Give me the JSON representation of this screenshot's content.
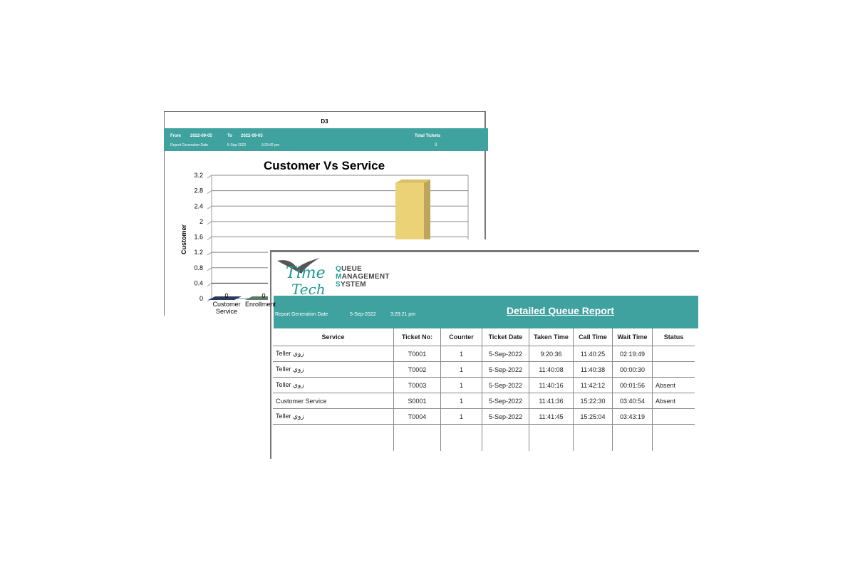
{
  "summary_report": {
    "title": "D3",
    "from_label": "From",
    "from_value": "2022-09-05",
    "to_label": "To",
    "to_value": "2022-09-05",
    "total_tickets_label": "Total Tickets",
    "total_tickets_value": "3",
    "gen_label": "Report Generation Date",
    "gen_date": "5-Sep-2022",
    "gen_time": "3:29:42 pm"
  },
  "chart_data": {
    "type": "bar",
    "title": "Customer Vs Service",
    "ylabel": "Customer",
    "xlabel": "",
    "categories": [
      "Customer Service",
      "Enrollment",
      ""
    ],
    "values": [
      0,
      0,
      3
    ],
    "data_labels": [
      "0",
      "0",
      ""
    ],
    "ylim": [
      0,
      3.2
    ],
    "yticks": [
      "0",
      "0.4",
      "0.8",
      "1.2",
      "1.6",
      "2",
      "2.4",
      "2.8",
      "3.2"
    ],
    "grid": true,
    "colors": [
      "#2b3a5c",
      "#5d7a62",
      "#ecd277"
    ]
  },
  "detail_report": {
    "logo": {
      "brand": "Time Tech",
      "line1_first": "Q",
      "line1_rest": "UEUE",
      "line2_first": "M",
      "line2_rest": "ANAGEMENT",
      "line3_first": "S",
      "line3_rest": "YSTEM"
    },
    "gen_label": "Report Generation Date",
    "gen_date": "5-Sep-2022",
    "gen_time": "3:29:21 pm",
    "title": "Detailed Queue Report",
    "columns": [
      "Service",
      "Ticket No:",
      "Counter",
      "Ticket Date",
      "Taken Time",
      "Call Time",
      "Wait Time",
      "Status"
    ],
    "rows": [
      [
        "Teller زوي",
        "T0001",
        "1",
        "5-Sep-2022",
        "9:20:36",
        "11:40:25",
        "02:19:49",
        ""
      ],
      [
        "Teller زوي",
        "T0002",
        "1",
        "5-Sep-2022",
        "11:40:08",
        "11:40:38",
        "00:00:30",
        ""
      ],
      [
        "Teller زوي",
        "T0003",
        "1",
        "5-Sep-2022",
        "11:40:16",
        "11:42:12",
        "00:01:56",
        "Absent"
      ],
      [
        "Customer Service",
        "S0001",
        "1",
        "5-Sep-2022",
        "11:41:36",
        "15:22:30",
        "03:40:54",
        "Absent"
      ],
      [
        "Teller زوي",
        "T0004",
        "1",
        "5-Sep-2022",
        "11:41:45",
        "15:25:04",
        "03:43:19",
        ""
      ]
    ],
    "accent": "#40a29f"
  }
}
